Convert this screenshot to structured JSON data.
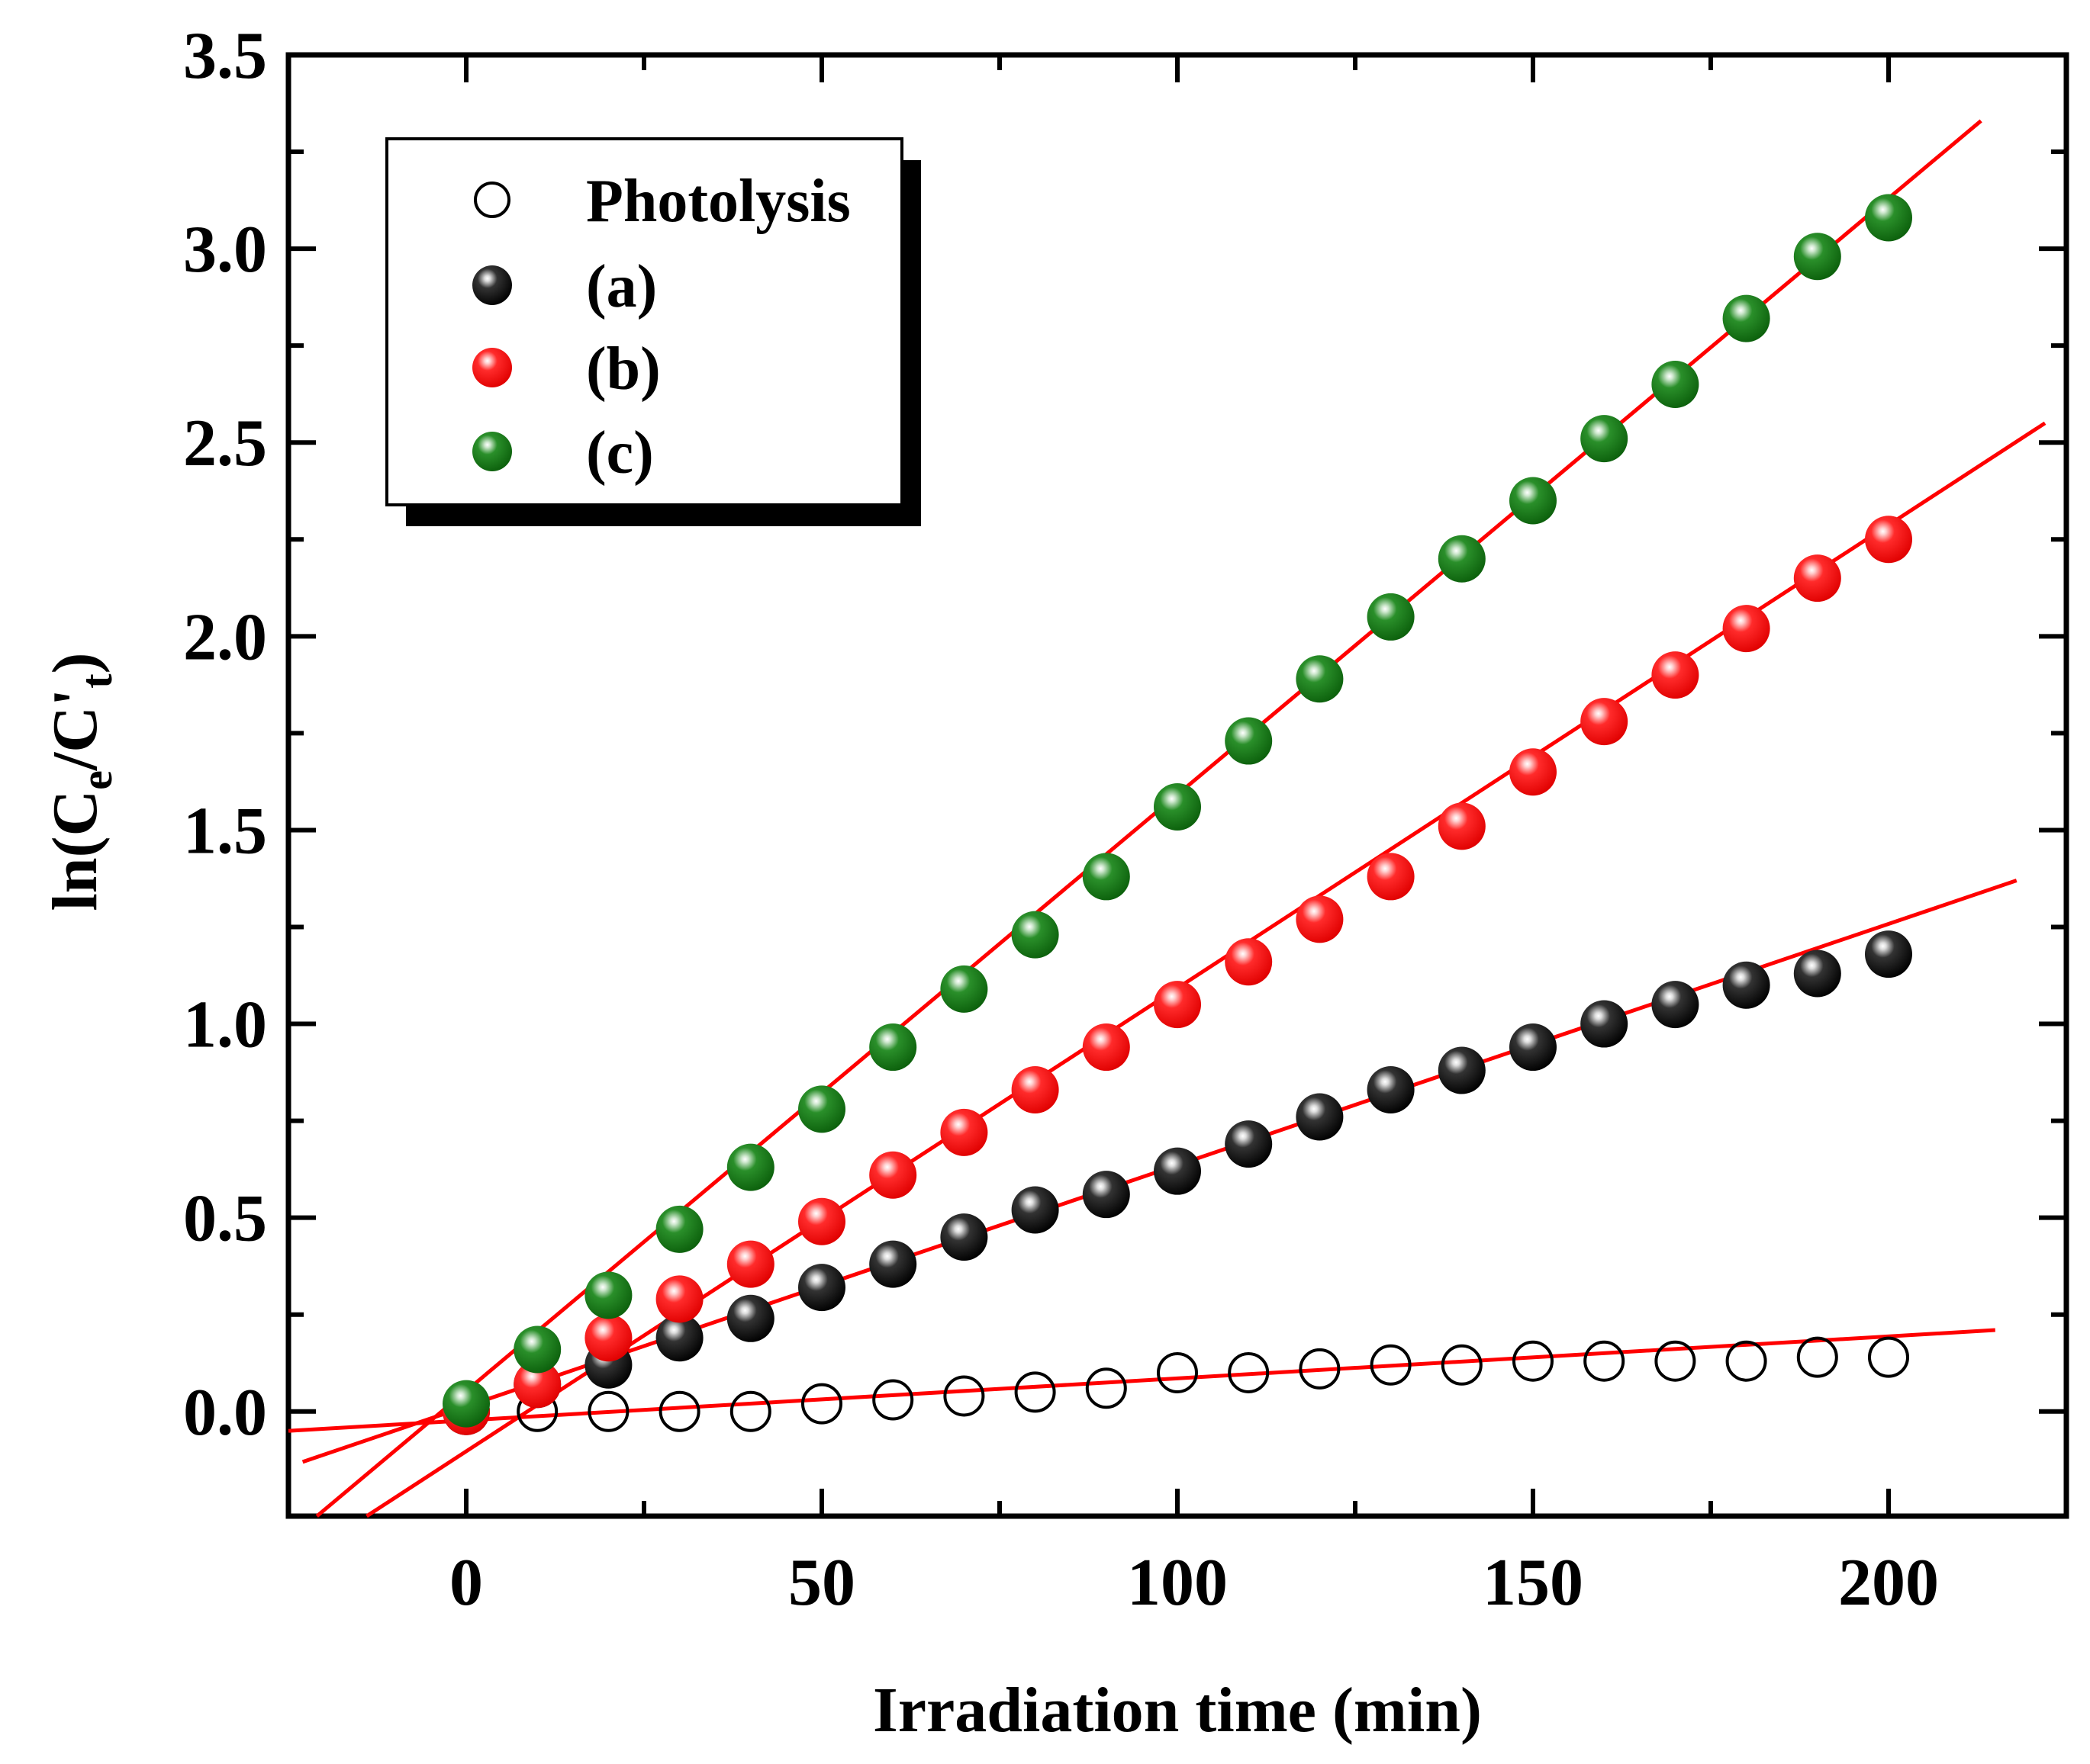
{
  "chart_data": {
    "type": "scatter",
    "title": "",
    "xlabel": "Irradiation time (min)",
    "ylabel": "ln(C_e/C'_t)",
    "ylabel_parts": {
      "prefix": "ln(C",
      "sub1": "e",
      "middle": "/C'",
      "sub2": "t",
      "suffix": ")"
    },
    "xlim": [
      -25,
      225
    ],
    "ylim": [
      -0.27,
      3.5
    ],
    "x_ticks": [
      0,
      50,
      100,
      150,
      200
    ],
    "x_tick_labels": [
      "0",
      "50",
      "100",
      "150",
      "200"
    ],
    "y_ticks": [
      0.0,
      0.5,
      1.0,
      1.5,
      2.0,
      2.5,
      3.0,
      3.5
    ],
    "y_tick_labels": [
      "0.0",
      "0.5",
      "1.0",
      "1.5",
      "2.0",
      "2.5",
      "3.0",
      "3.5"
    ],
    "legend_position": "top-left",
    "x": [
      0,
      10,
      20,
      30,
      40,
      50,
      60,
      70,
      80,
      90,
      100,
      110,
      120,
      130,
      140,
      150,
      160,
      170,
      180,
      190,
      200
    ],
    "series": [
      {
        "name": "Photolysis",
        "marker": "open-circle",
        "color": "#000000",
        "values": [
          0.0,
          0.0,
          0.0,
          0.0,
          0.0,
          0.02,
          0.03,
          0.04,
          0.05,
          0.06,
          0.1,
          0.1,
          0.11,
          0.12,
          0.12,
          0.13,
          0.13,
          0.13,
          0.13,
          0.14,
          0.14
        ],
        "fit": {
          "x": [
            -25,
            215
          ],
          "y": [
            -0.05,
            0.21
          ]
        }
      },
      {
        "name": "(a)",
        "marker": "filled-sphere",
        "color": "#000000",
        "values": [
          0.0,
          0.07,
          0.12,
          0.19,
          0.24,
          0.32,
          0.38,
          0.45,
          0.52,
          0.56,
          0.62,
          0.69,
          0.76,
          0.83,
          0.88,
          0.94,
          1.0,
          1.05,
          1.1,
          1.13,
          1.18
        ],
        "fit": {
          "x": [
            -23,
            218
          ],
          "y": [
            -0.13,
            1.37
          ]
        }
      },
      {
        "name": "(b)",
        "marker": "filled-sphere",
        "color": "#ff1a1a",
        "values": [
          0.0,
          0.07,
          0.19,
          0.29,
          0.38,
          0.49,
          0.61,
          0.72,
          0.83,
          0.94,
          1.05,
          1.16,
          1.27,
          1.38,
          1.51,
          1.65,
          1.78,
          1.9,
          2.02,
          2.15,
          2.25
        ],
        "fit": {
          "x": [
            -14,
            222
          ],
          "y": [
            -0.27,
            2.55
          ]
        }
      },
      {
        "name": "(c)",
        "marker": "filled-sphere",
        "color": "#1a8a1a",
        "values": [
          0.02,
          0.16,
          0.3,
          0.47,
          0.63,
          0.78,
          0.94,
          1.09,
          1.23,
          1.38,
          1.56,
          1.73,
          1.89,
          2.05,
          2.2,
          2.35,
          2.51,
          2.65,
          2.82,
          2.98,
          3.08
        ],
        "fit": {
          "x": [
            -21,
            213
          ],
          "y": [
            -0.27,
            3.33
          ]
        }
      }
    ],
    "fit_line_color": "#ff0000"
  }
}
